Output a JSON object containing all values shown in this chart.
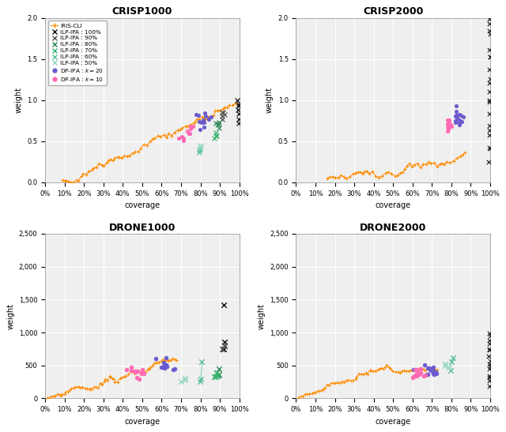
{
  "titles": [
    "CRISP1000",
    "CRISP2000",
    "DRONE1000",
    "DRONE2000"
  ],
  "subplot_configs": [
    {
      "title": "CRISP1000",
      "ylim": [
        0.0,
        2.0
      ],
      "yticks": [
        0.0,
        0.5,
        1.0,
        1.5,
        2.0
      ],
      "ytick_labels": [
        "0.0",
        "0.5",
        "1.0",
        "1.5",
        "2.0"
      ],
      "show_legend": true
    },
    {
      "title": "CRISP2000",
      "ylim": [
        0.0,
        2.0
      ],
      "yticks": [
        0.0,
        0.5,
        1.0,
        1.5,
        2.0
      ],
      "ytick_labels": [
        "0.0",
        "0.5",
        "1.0",
        "1.5",
        "2.0"
      ],
      "show_legend": false
    },
    {
      "title": "DRONE1000",
      "ylim": [
        0,
        2500
      ],
      "yticks": [
        0,
        500,
        1000,
        1500,
        2000,
        2500
      ],
      "ytick_labels": [
        "0",
        "500",
        "1,000",
        "1,500",
        "2,000",
        "2,500"
      ],
      "show_legend": false
    },
    {
      "title": "DRONE2000",
      "ylim": [
        0,
        2500
      ],
      "yticks": [
        0,
        500,
        1000,
        1500,
        2000,
        2500
      ],
      "ytick_labels": [
        "0",
        "500",
        "1,000",
        "1,500",
        "2,000",
        "2,500"
      ],
      "show_legend": false
    }
  ],
  "bg_color": "#DCDCDC",
  "grid_color": "#FFFFFF",
  "figure_bg": "#FFFFFF",
  "iris_color": "#FF8C00",
  "ilp_colors_100": "#111111",
  "ilp_colors_90": "#555555",
  "ilp_colors_80": "#2E8B57",
  "ilp_colors_70": "#3CB371",
  "ilp_colors_60": "#5BBFA0",
  "ilp_colors_50": "#98D8C8",
  "dp_color_20": "#6A5ACD",
  "dp_color_10": "#FF69B4",
  "xtick_labels": [
    "0%",
    "10%",
    "20%",
    "30%",
    "40%",
    "50%",
    "60%",
    "70%",
    "80%",
    "90%",
    "100%"
  ]
}
